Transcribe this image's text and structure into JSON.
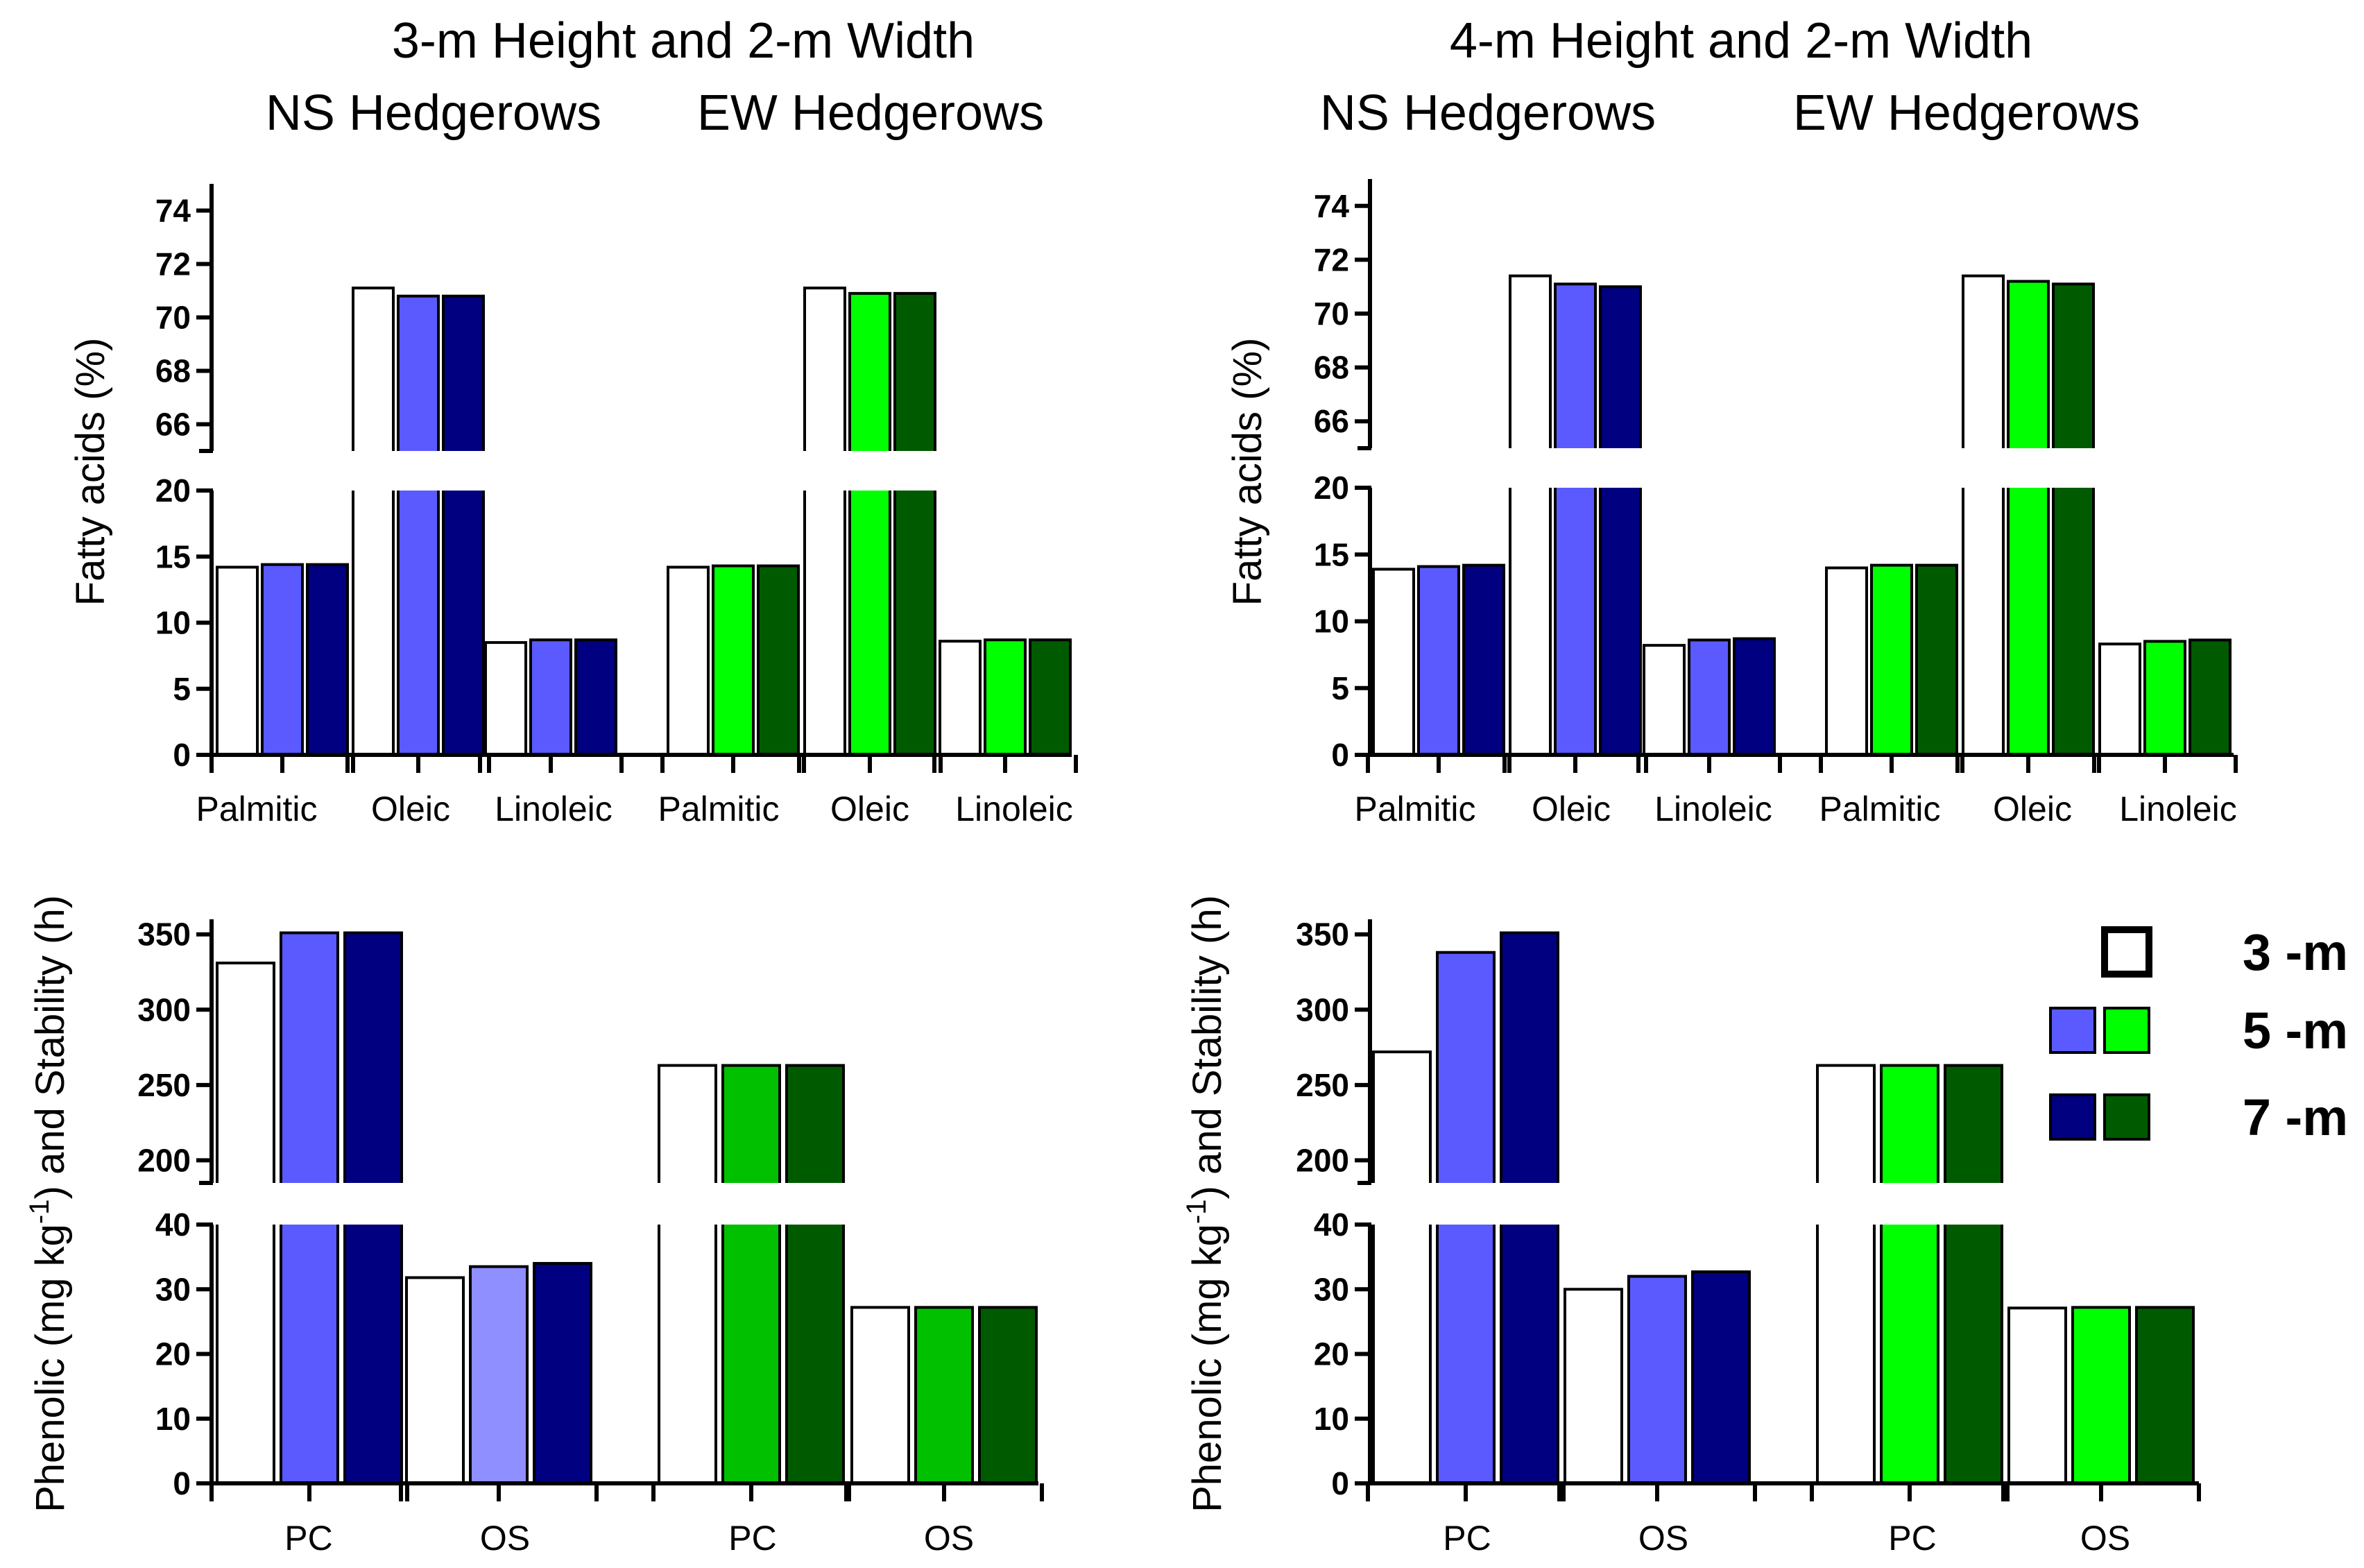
{
  "colors": {
    "white": "#ffffff",
    "blue5": "#5a5aff",
    "blue5_light": "#8f8fff",
    "navy7": "#000080",
    "green5": "#00ff00",
    "green5_mid": "#00c000",
    "dkgreen7": "#005a00"
  },
  "panels": [
    {
      "title": "3-m Height  and  2-m Width",
      "subtitle_left": "NS Hedgerows",
      "subtitle_right": "EW Hedgerows"
    },
    {
      "title": "4-m Height  and  2-m Width",
      "subtitle_left": "NS Hedgerows",
      "subtitle_right": "EW Hedgerows"
    }
  ],
  "legend": {
    "items": [
      {
        "label": "3 -m"
      },
      {
        "label": "5 -m"
      },
      {
        "label": "7 -m"
      }
    ]
  },
  "chart_data": [
    {
      "type": "bar",
      "title": "3-m Height and 2-m Width — Fatty acids",
      "ylabel": "Fatty acids (%)",
      "y_break": {
        "lower": [
          0,
          20
        ],
        "upper": [
          65,
          75
        ]
      },
      "lower_ticks": [
        "0",
        "5",
        "10",
        "15",
        "20"
      ],
      "upper_ticks": [
        "66",
        "68",
        "70",
        "72",
        "74"
      ],
      "categories": [
        "Palmitic",
        "Oleic",
        "Linoleic",
        "Palmitic",
        "Oleic",
        "Linoleic"
      ],
      "groups": [
        "NS Hedgerows",
        "EW Hedgerows"
      ],
      "series": [
        {
          "name": "3 -m",
          "values": [
            14.2,
            71.1,
            8.5,
            14.2,
            71.1,
            8.6
          ]
        },
        {
          "name": "5 -m",
          "values": [
            14.4,
            70.8,
            8.7,
            14.3,
            70.9,
            8.7
          ]
        },
        {
          "name": "7 -m",
          "values": [
            14.4,
            70.8,
            8.7,
            14.3,
            70.9,
            8.7
          ]
        }
      ]
    },
    {
      "type": "bar",
      "title": "4-m Height and 2-m Width — Fatty acids",
      "ylabel": "Fatty acids (%)",
      "y_break": {
        "lower": [
          0,
          20
        ],
        "upper": [
          65,
          75
        ]
      },
      "lower_ticks": [
        "0",
        "5",
        "10",
        "15",
        "20"
      ],
      "upper_ticks": [
        "66",
        "68",
        "70",
        "72",
        "74"
      ],
      "categories": [
        "Palmitic",
        "Oleic",
        "Linoleic",
        "Palmitic",
        "Oleic",
        "Linoleic"
      ],
      "groups": [
        "NS Hedgerows",
        "EW Hedgerows"
      ],
      "series": [
        {
          "name": "3 -m",
          "values": [
            13.9,
            71.4,
            8.2,
            14.0,
            71.4,
            8.3
          ]
        },
        {
          "name": "5 -m",
          "values": [
            14.1,
            71.1,
            8.6,
            14.2,
            71.2,
            8.5
          ]
        },
        {
          "name": "7 -m",
          "values": [
            14.2,
            71.0,
            8.7,
            14.2,
            71.1,
            8.6
          ]
        }
      ]
    },
    {
      "type": "bar",
      "title": "3-m Height and 2-m Width — Phenolic and Stability",
      "ylabel": "Phenolic (mg kg-1) and Stability (h)",
      "y_break": {
        "lower": [
          0,
          40
        ],
        "upper": [
          185,
          360
        ]
      },
      "lower_ticks": [
        "0",
        "10",
        "20",
        "30",
        "40"
      ],
      "upper_ticks": [
        "200",
        "250",
        "300",
        "350"
      ],
      "categories": [
        "PC",
        "OS",
        "PC",
        "OS"
      ],
      "groups": [
        "NS Hedgerows",
        "EW Hedgerows"
      ],
      "series": [
        {
          "name": "3 -m",
          "values": [
            331,
            31.8,
            263,
            27.2
          ]
        },
        {
          "name": "5 -m",
          "values": [
            351,
            33.5,
            263,
            27.2
          ]
        },
        {
          "name": "7 -m",
          "values": [
            351,
            34.0,
            263,
            27.2
          ]
        }
      ]
    },
    {
      "type": "bar",
      "title": "4-m Height and 2-m Width — Phenolic and Stability",
      "ylabel": "Phenolic (mg kg-1) and Stability (h)",
      "y_break": {
        "lower": [
          0,
          40
        ],
        "upper": [
          185,
          360
        ]
      },
      "lower_ticks": [
        "0",
        "10",
        "20",
        "30",
        "40"
      ],
      "upper_ticks": [
        "200",
        "250",
        "300",
        "350"
      ],
      "categories": [
        "PC",
        "OS",
        "PC",
        "OS"
      ],
      "groups": [
        "NS Hedgerows",
        "EW Hedgerows"
      ],
      "series": [
        {
          "name": "3 -m",
          "values": [
            272,
            30.0,
            263,
            27.1
          ]
        },
        {
          "name": "5 -m",
          "values": [
            338,
            32.0,
            263,
            27.2
          ]
        },
        {
          "name": "7 -m",
          "values": [
            351,
            32.7,
            263,
            27.2
          ]
        }
      ]
    }
  ]
}
